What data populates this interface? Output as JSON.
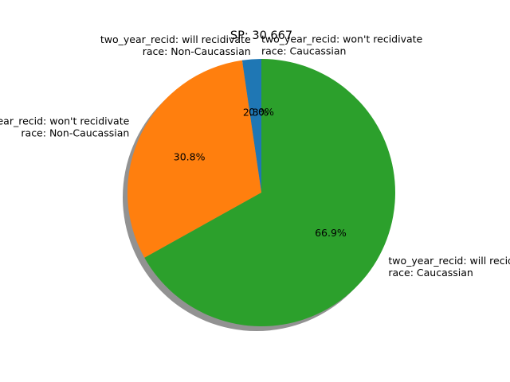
{
  "chart_data": {
    "type": "pie",
    "title": "SP: 30.667",
    "slices": [
      {
        "label_lines": [
          "two_year_recid: won't recidivate",
          "race: Caucassian"
        ],
        "value": 0.0,
        "pct_text": "0.0%",
        "color": "#1f77b4"
      },
      {
        "label_lines": [
          "two_year_recid: will recidivate",
          "race: Non-Caucassian"
        ],
        "value": 2.3,
        "pct_text": "2.3%",
        "color": "#1f77b4"
      },
      {
        "label_lines": [
          "two_year_recid: won't recidivate",
          "race: Non-Caucassian"
        ],
        "value": 30.8,
        "pct_text": "30.8%",
        "color": "#ff7f0e"
      },
      {
        "label_lines": [
          "two_year_recid: will recidivate",
          "race: Caucassian"
        ],
        "value": 66.9,
        "pct_text": "66.9%",
        "color": "#2ca02c"
      }
    ],
    "start_angle_deg": 90,
    "direction": "counterclockwise",
    "shadow": true,
    "legend": "none"
  }
}
